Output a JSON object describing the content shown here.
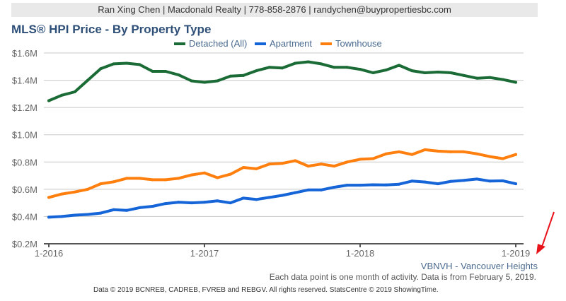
{
  "header": {
    "agent_info": "Ran Xing Chen | Macdonald Realty | 778-858-2876 | randychen@buypropertiesbc.com"
  },
  "colors": {
    "title": "#2e4f78",
    "detached": "#1a6b35",
    "apartment": "#1565d8",
    "townhouse": "#ff7f0e",
    "grid": "#c8c8c8",
    "annotation_arrow": "#e8141b"
  },
  "chart_data": {
    "type": "line",
    "title": "MLS® HPI Price - By Property Type",
    "xlabel": "",
    "ylabel": "",
    "ylim": [
      0.2,
      1.6
    ],
    "y_ticks": [
      1.6,
      1.4,
      1.2,
      1.0,
      0.8,
      0.6,
      0.4,
      0.2
    ],
    "y_tick_labels": [
      "$1.6M",
      "$1.4M",
      "$1.2M",
      "$1.0M",
      "$0.8M",
      "$0.6M",
      "$0.4M",
      "$0.2M"
    ],
    "x_tick_labels": [
      "1-2016",
      "1-2017",
      "1-2018",
      "1-2019"
    ],
    "x_tick_index": [
      0,
      12,
      24,
      36
    ],
    "grid": true,
    "legend_position": "top-center",
    "x": [
      "1-2016",
      "2-2016",
      "3-2016",
      "4-2016",
      "5-2016",
      "6-2016",
      "7-2016",
      "8-2016",
      "9-2016",
      "10-2016",
      "11-2016",
      "12-2016",
      "1-2017",
      "2-2017",
      "3-2017",
      "4-2017",
      "5-2017",
      "6-2017",
      "7-2017",
      "8-2017",
      "9-2017",
      "10-2017",
      "11-2017",
      "12-2017",
      "1-2018",
      "2-2018",
      "3-2018",
      "4-2018",
      "5-2018",
      "6-2018",
      "7-2018",
      "8-2018",
      "9-2018",
      "10-2018",
      "11-2018",
      "12-2018",
      "1-2019"
    ],
    "series": [
      {
        "name": "Detached (All)",
        "color": "#1a6b35",
        "values": [
          1.25,
          1.29,
          1.315,
          1.4,
          1.485,
          1.52,
          1.525,
          1.515,
          1.465,
          1.465,
          1.44,
          1.395,
          1.385,
          1.395,
          1.43,
          1.435,
          1.47,
          1.495,
          1.49,
          1.525,
          1.535,
          1.52,
          1.495,
          1.495,
          1.48,
          1.455,
          1.475,
          1.51,
          1.47,
          1.455,
          1.46,
          1.455,
          1.435,
          1.415,
          1.42,
          1.405,
          1.385
        ]
      },
      {
        "name": "Apartment",
        "color": "#1565d8",
        "values": [
          0.395,
          0.4,
          0.41,
          0.415,
          0.425,
          0.45,
          0.445,
          0.465,
          0.475,
          0.495,
          0.505,
          0.5,
          0.505,
          0.515,
          0.5,
          0.535,
          0.525,
          0.54,
          0.555,
          0.575,
          0.595,
          0.595,
          0.615,
          0.63,
          0.63,
          0.633,
          0.632,
          0.637,
          0.66,
          0.653,
          0.64,
          0.658,
          0.665,
          0.675,
          0.66,
          0.662,
          0.64
        ]
      },
      {
        "name": "Townhouse",
        "color": "#ff7f0e",
        "values": [
          0.54,
          0.565,
          0.58,
          0.6,
          0.64,
          0.655,
          0.68,
          0.68,
          0.67,
          0.67,
          0.68,
          0.705,
          0.72,
          0.685,
          0.71,
          0.76,
          0.75,
          0.785,
          0.79,
          0.81,
          0.77,
          0.785,
          0.77,
          0.8,
          0.82,
          0.825,
          0.86,
          0.875,
          0.855,
          0.89,
          0.88,
          0.875,
          0.875,
          0.86,
          0.84,
          0.825,
          0.855
        ]
      }
    ]
  },
  "footer": {
    "area": "VBNVH - Vancouver Heights",
    "note": "Each data point is one month of activity. Data is from February 5, 2019.",
    "copyright": "Data © 2019 BCNREB, CADREB, FVREB and REBGV. All rights reserved. StatsCentre © 2019 ShowingTime."
  }
}
